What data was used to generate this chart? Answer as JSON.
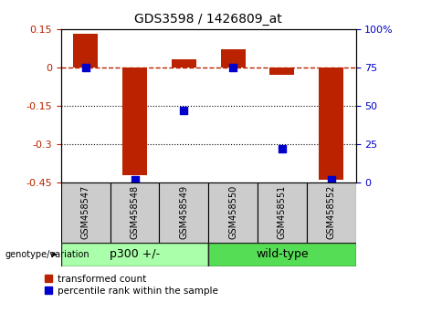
{
  "title": "GDS3598 / 1426809_at",
  "samples": [
    "GSM458547",
    "GSM458548",
    "GSM458549",
    "GSM458550",
    "GSM458551",
    "GSM458552"
  ],
  "red_bars": [
    0.13,
    -0.42,
    0.03,
    0.07,
    -0.03,
    -0.44
  ],
  "blue_dots": [
    75,
    2,
    47,
    75,
    22,
    2
  ],
  "groups": [
    {
      "label": "p300 +/-",
      "start": 0,
      "end": 3,
      "color": "#AAFFAA"
    },
    {
      "label": "wild-type",
      "start": 3,
      "end": 6,
      "color": "#55DD55"
    }
  ],
  "red_color": "#BB2200",
  "blue_color": "#0000CC",
  "ylim_left": [
    -0.45,
    0.15
  ],
  "ylim_right": [
    0,
    100
  ],
  "yticks_left": [
    -0.45,
    -0.3,
    -0.15,
    0.0,
    0.15
  ],
  "yticks_right": [
    0,
    25,
    50,
    75,
    100
  ],
  "dotted_lines": [
    -0.15,
    -0.3
  ],
  "bar_width": 0.5,
  "dot_size": 40,
  "legend_labels": [
    "transformed count",
    "percentile rank within the sample"
  ],
  "xlabel_genotype": "genotype/variation",
  "bg_color": "#FFFFFF",
  "plot_bg": "#FFFFFF",
  "tick_area_bg": "#CCCCCC",
  "group_border_color": "#222222"
}
